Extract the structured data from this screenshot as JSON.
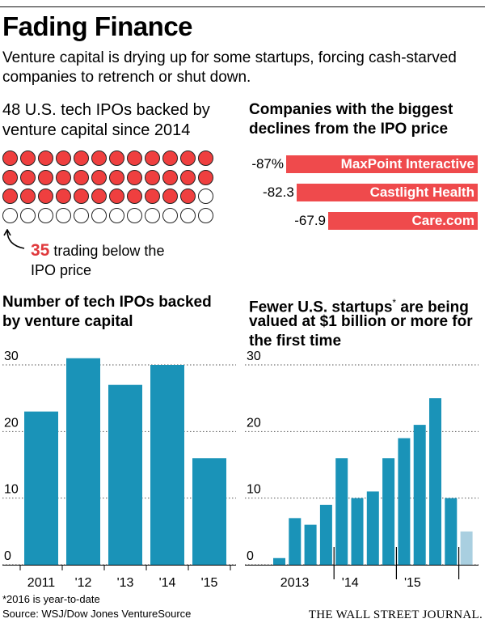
{
  "header": {
    "title": "Fading Finance",
    "dek": "Venture capital is drying up for some startups, forcing cash-starved companies to retrench or shut down."
  },
  "ipo_dots": {
    "total": 48,
    "below_ipo": 35,
    "heading_line1": "48 U.S. tech IPOs backed by",
    "heading_line2": "venture capital since 2014",
    "callout_number": "35",
    "callout_text1": " trading below the",
    "callout_text2": "IPO price",
    "filled_color": "#ef3f3f"
  },
  "declines": {
    "heading_line1": "Companies with the biggest",
    "heading_line2": "declines from the IPO price",
    "bar_color": "#ef4a4c",
    "items": [
      {
        "label": "-87%",
        "value": -87,
        "name": "MaxPoint Interactive"
      },
      {
        "label": "-82.3",
        "value": -82.3,
        "name": "Castlight Health"
      },
      {
        "label": "-67.9",
        "value": -67.9,
        "name": "Care.com"
      }
    ]
  },
  "chart_data": [
    {
      "type": "bar",
      "title": "Number of tech IPOs backed by venture capital",
      "title_line1": "Number of tech IPOs backed",
      "title_line2": "by venture capital",
      "categories": [
        "2011",
        "'12",
        "'13",
        "'14",
        "'15"
      ],
      "values": [
        23,
        31,
        27,
        30,
        16
      ],
      "ylim": [
        0,
        30
      ],
      "yticks": [
        0,
        10,
        20,
        30
      ],
      "grid": true,
      "color": "#1a93b8"
    },
    {
      "type": "bar",
      "title": "Fewer U.S. startups* are being valued at $1 billion or more for the first time",
      "title_line1": "Fewer U.S. startups",
      "title_star": "*",
      "title_line1b": " are being",
      "title_line2": "valued at $1 billion or more for",
      "title_line3": "the first time",
      "categories": [
        "2013 Q1",
        "2013 Q2",
        "2013 Q3",
        "2013 Q4",
        "2014 Q1",
        "2014 Q2",
        "2014 Q3",
        "2014 Q4",
        "2015 Q1",
        "2015 Q2",
        "2015 Q3",
        "2015 Q4",
        "2016 Q1"
      ],
      "values": [
        1,
        7,
        6,
        9,
        16,
        10,
        11,
        16,
        19,
        21,
        25,
        10,
        5
      ],
      "year_labels": [
        "2013",
        "'14",
        "'15"
      ],
      "ylim": [
        0,
        30
      ],
      "yticks": [
        0,
        10,
        20,
        30
      ],
      "grid": true,
      "color": "#1a93b8",
      "partial_color": "#a9cfe0"
    }
  ],
  "footer": {
    "note": "*2016 is year-to-date",
    "source": "Source: WSJ/Dow Jones VentureSource",
    "credit": "THE WALL STREET JOURNAL."
  }
}
